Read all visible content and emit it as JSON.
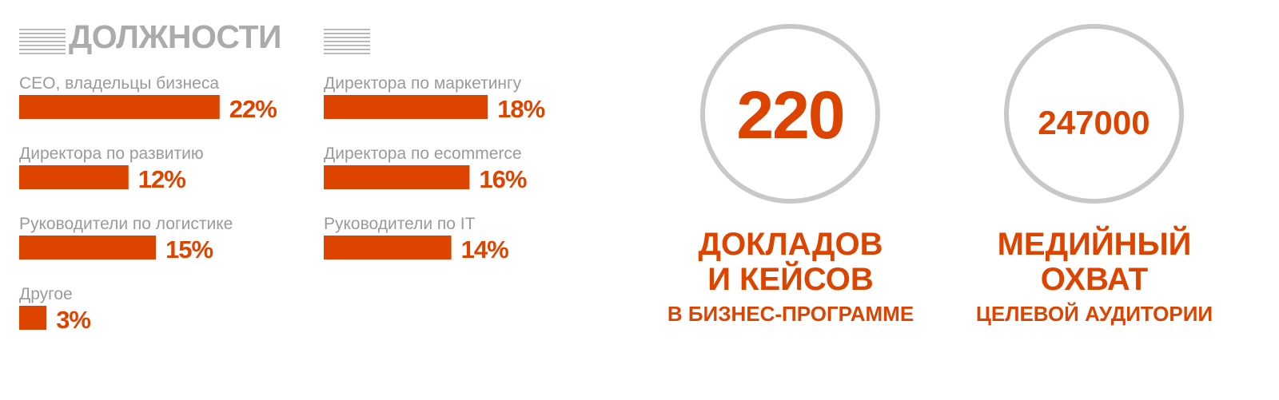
{
  "colors": {
    "accent": "#dd4400",
    "label_gray": "#9a9a9a",
    "title_gray": "#ababab",
    "ring_gray": "#c8c8c8"
  },
  "title": "ДОЛЖНОСТИ",
  "chart_data": {
    "type": "bar",
    "orientation": "horizontal",
    "value_unit": "%",
    "categories": [
      "CEO, владельцы бизнеса",
      "Директора по развитию",
      "Руководители по логистике",
      "Другое",
      "Директора по маркетингу",
      "Директора по ecommerce",
      "Руководители по IT"
    ],
    "values": [
      22,
      12,
      15,
      3,
      18,
      16,
      14
    ],
    "value_labels": [
      "22%",
      "12%",
      "15%",
      "3%",
      "18%",
      "16%",
      "14%"
    ],
    "columns": [
      [
        0,
        1,
        2,
        3
      ],
      [
        4,
        5,
        6
      ]
    ]
  },
  "stats": [
    {
      "number": "220",
      "line1": "ДОКЛАДОВ",
      "line2": "И КЕЙСОВ",
      "line3": "В БИЗНЕС-ПРОГРАММЕ"
    },
    {
      "number": "247000",
      "line1": "МЕДИЙНЫЙ",
      "line2": "ОХВАТ",
      "line3": "ЦЕЛЕВОЙ АУДИТОРИИ"
    }
  ]
}
